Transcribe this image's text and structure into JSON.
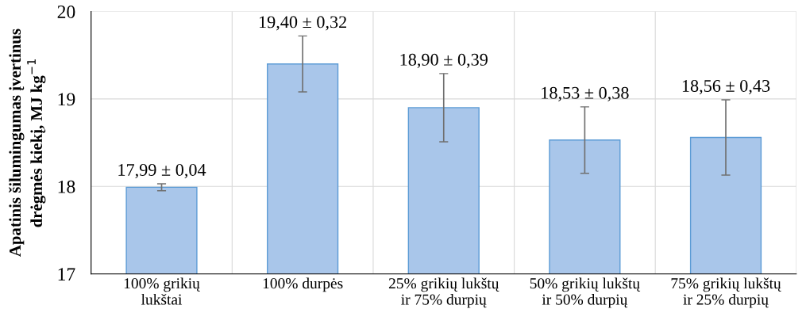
{
  "chart_data": {
    "type": "bar",
    "categories": [
      "100% grikių\nlukštai",
      "100% durpės",
      "25% grikių lukštų\nir 75% durpių",
      "50% grikių lukštų\nir 50% durpių",
      "75% grikių lukštų\nir 25% durpių"
    ],
    "values": [
      17.99,
      19.4,
      18.9,
      18.53,
      18.56
    ],
    "errors": [
      0.04,
      0.32,
      0.39,
      0.38,
      0.43
    ],
    "value_labels": [
      "17,99 ± 0,04",
      "19,40 ± 0,32",
      "18,90 ± 0,39",
      "18,53 ± 0,38",
      "18,56 ± 0,43"
    ],
    "color": "#a9c6ea",
    "ylabel": "Apatinis šilumingumas įvertinus\ndrėgmės kiekį, MJ kg$^{−1}$",
    "ylim": [
      17,
      20
    ],
    "yticks": [
      17,
      18,
      19,
      20
    ],
    "grid": true
  }
}
